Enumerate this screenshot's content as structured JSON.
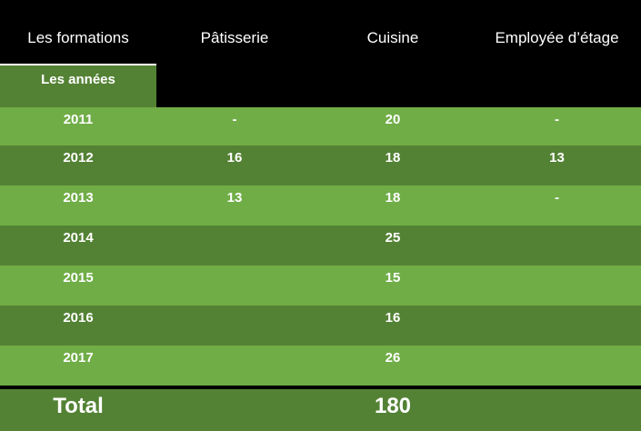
{
  "header": {
    "col0": "Les formations",
    "col1": "Pâtisserie",
    "col2": "Cuisine",
    "col3": "Employée d’étage"
  },
  "subheader": {
    "years_label": "Les années"
  },
  "rows": [
    {
      "year": "2011",
      "patisserie": "-",
      "cuisine": "20",
      "employee": "-"
    },
    {
      "year": "2012",
      "patisserie": "16",
      "cuisine": "18",
      "employee": "13"
    },
    {
      "year": "2013",
      "patisserie": "13",
      "cuisine": "18",
      "employee": "-"
    },
    {
      "year": "2014",
      "patisserie": "",
      "cuisine": "25",
      "employee": ""
    },
    {
      "year": "2015",
      "patisserie": "",
      "cuisine": "15",
      "employee": ""
    },
    {
      "year": "2016",
      "patisserie": "",
      "cuisine": "16",
      "employee": ""
    },
    {
      "year": "2017",
      "patisserie": "",
      "cuisine": "26",
      "employee": ""
    }
  ],
  "total": {
    "label": "Total",
    "patisserie": "",
    "cuisine": "180",
    "employee": ""
  },
  "colors": {
    "header_bg": "#000000",
    "row_light": "#70ad47",
    "row_dark": "#548235",
    "text": "#ffffff"
  }
}
